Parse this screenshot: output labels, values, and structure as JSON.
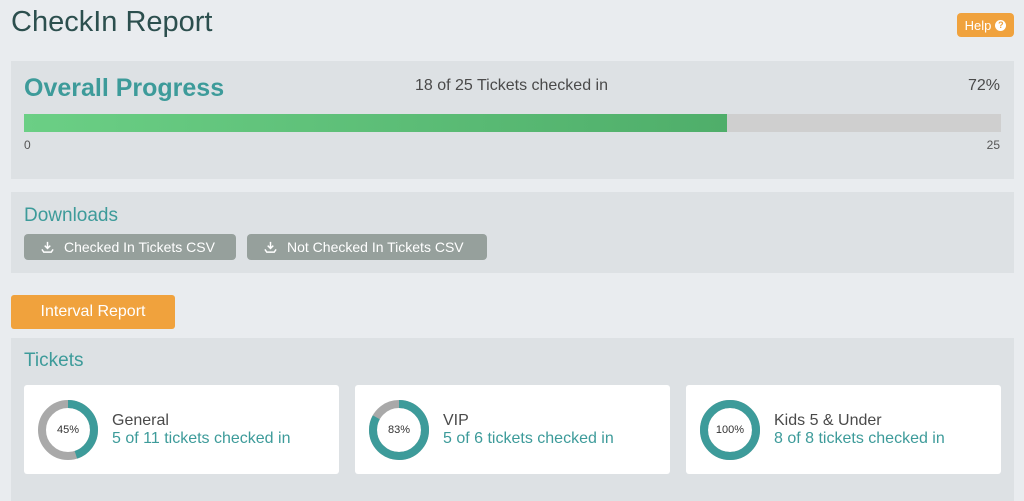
{
  "header": {
    "title": "CheckIn Report",
    "help_label": "Help",
    "help_icon": "question-circle-icon"
  },
  "overall": {
    "title": "Overall Progress",
    "summary": "18 of 25 Tickets checked in",
    "percent_label": "72%",
    "progress_fraction": 0.72,
    "min_label": "0",
    "max_label": "25",
    "fill_color": "#5cc27a",
    "track_color": "#cfcfcf"
  },
  "downloads": {
    "title": "Downloads",
    "buttons": [
      {
        "label": "Checked In Tickets CSV",
        "icon": "download-icon"
      },
      {
        "label": "Not Checked In Tickets CSV",
        "icon": "download-icon"
      }
    ]
  },
  "interval_report": {
    "label": "Interval Report"
  },
  "tickets": {
    "title": "Tickets",
    "items": [
      {
        "name": "General",
        "count_text": "5 of 11 tickets checked in",
        "percent_label": "45%",
        "fraction": 0.45
      },
      {
        "name": "VIP",
        "count_text": "5 of 6 tickets checked in",
        "percent_label": "83%",
        "fraction": 0.83
      },
      {
        "name": "Kids 5 & Under",
        "count_text": "8 of 8 tickets checked in",
        "percent_label": "100%",
        "fraction": 1.0
      }
    ]
  },
  "colors": {
    "accent_teal": "#3d9b9a",
    "accent_orange": "#f0a23d",
    "donut_remaining": "#a9a9a9"
  }
}
